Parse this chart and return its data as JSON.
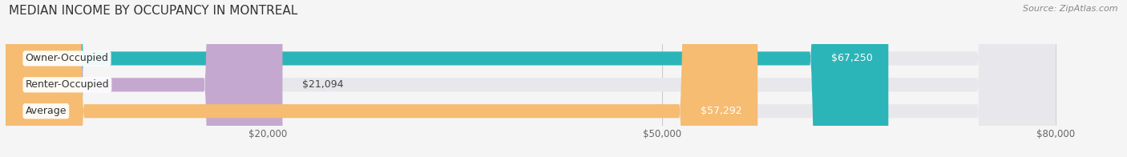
{
  "title": "MEDIAN INCOME BY OCCUPANCY IN MONTREAL",
  "source": "Source: ZipAtlas.com",
  "categories": [
    "Owner-Occupied",
    "Renter-Occupied",
    "Average"
  ],
  "values": [
    67250,
    21094,
    57292
  ],
  "bar_colors": [
    "#2bb5b8",
    "#c4a8d0",
    "#f5bc72"
  ],
  "bar_bg_color": "#e8e8ec",
  "value_label_color": "#ffffff",
  "xlim_max": 85000,
  "data_max": 80000,
  "xticks": [
    20000,
    50000,
    80000
  ],
  "xtick_labels": [
    "$20,000",
    "$50,000",
    "$80,000"
  ],
  "title_fontsize": 11,
  "source_fontsize": 8,
  "bar_label_fontsize": 9,
  "value_fontsize": 9,
  "bar_height": 0.52,
  "figsize": [
    14.06,
    1.96
  ],
  "dpi": 100,
  "background_color": "#f5f5f5"
}
